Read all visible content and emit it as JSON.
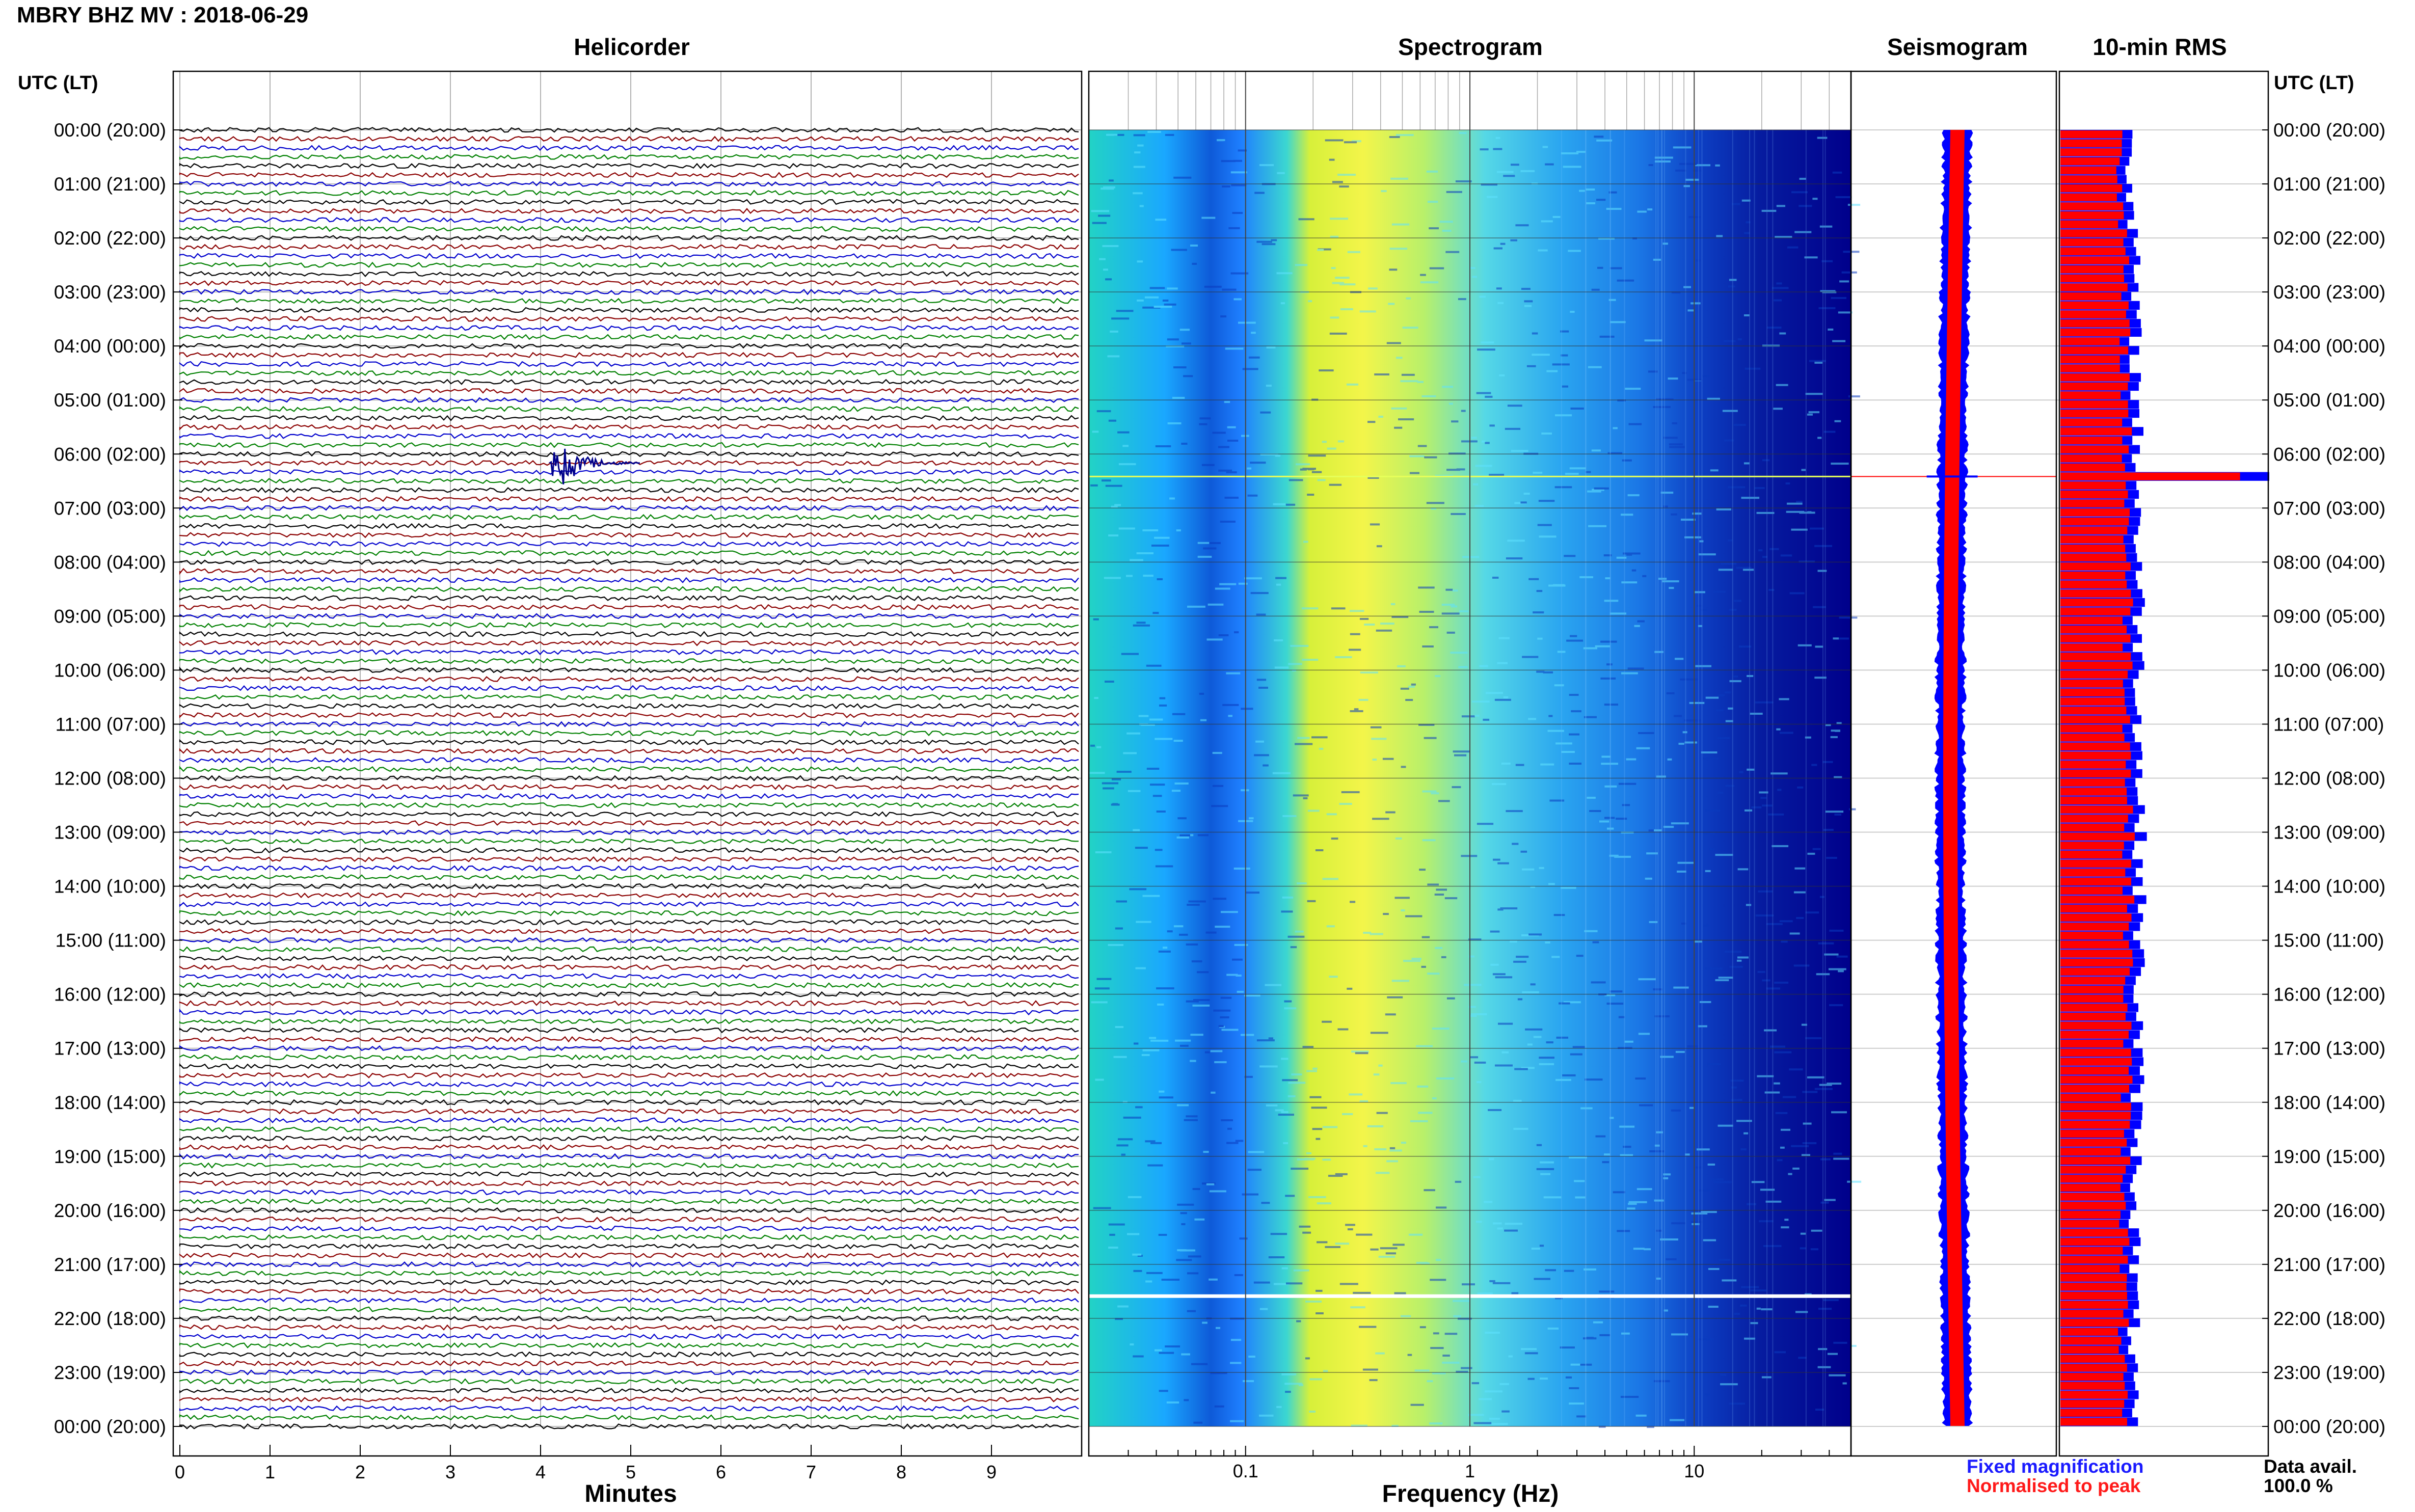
{
  "header": {
    "title": "MBRY BHZ MV : 2018-06-29"
  },
  "panels": {
    "helicorder": "Helicorder",
    "spectrogram": "Spectrogram",
    "seismogram": "Seismogram",
    "rms": "10-min RMS"
  },
  "time_axis_header_left": "UTC (LT)",
  "time_axis_header_right": "UTC (LT)",
  "legend": {
    "fixed": "Fixed magnification",
    "normalised": "Normalised to peak"
  },
  "data_availability": {
    "label": "Data avail.",
    "value": "100.0 %"
  },
  "colors": {
    "trace_cycle": [
      "#000000",
      "#8b0000",
      "#0000cd",
      "#008000"
    ],
    "event": "#00008b",
    "fixed_magnification": "#0000ff",
    "normalised_to_peak": "#ff0000",
    "spectrogram_low": "#00008b",
    "spectrogram_mid": "#1e90ff",
    "spectrogram_high": "#ffff00"
  },
  "chart_data": [
    {
      "type": "line",
      "name": "helicorder",
      "title": "Helicorder",
      "xlabel": "Minutes",
      "xlim": [
        0,
        10
      ],
      "x_ticks": [
        "0",
        "1",
        "2",
        "3",
        "4",
        "5",
        "6",
        "7",
        "8",
        "9"
      ],
      "rows_per_hour": 6,
      "hours": 24,
      "y_tick_labels": [
        "00:00 (20:00)",
        "01:00 (21:00)",
        "02:00 (22:00)",
        "03:00 (23:00)",
        "04:00 (00:00)",
        "05:00 (01:00)",
        "06:00 (02:00)",
        "07:00 (03:00)",
        "08:00 (04:00)",
        "09:00 (05:00)",
        "10:00 (06:00)",
        "11:00 (07:00)",
        "12:00 (08:00)",
        "13:00 (09:00)",
        "14:00 (10:00)",
        "15:00 (11:00)",
        "16:00 (12:00)",
        "17:00 (13:00)",
        "18:00 (14:00)",
        "19:00 (15:00)",
        "20:00 (16:00)",
        "21:00 (17:00)",
        "22:00 (18:00)",
        "23:00 (19:00)",
        "00:00 (20:00)"
      ],
      "annotations": [
        {
          "event_time_utc": "06:10",
          "start_minute": 4.1,
          "duration_minutes": 1.0
        }
      ],
      "grid": true
    },
    {
      "type": "heatmap",
      "name": "spectrogram",
      "title": "Spectrogram",
      "xlabel": "Frequency (Hz)",
      "x_scale": "log",
      "xlim": [
        0.02,
        50
      ],
      "x_ticks": [
        "0.1",
        "1",
        "10"
      ],
      "peak_band_hz": [
        0.2,
        1.0
      ],
      "notes_events": [
        {
          "time_utc": "06:25",
          "kind": "broadband line"
        },
        {
          "time_utc": "21:35",
          "kind": "data gap"
        }
      ],
      "grid": true
    },
    {
      "type": "area",
      "name": "seismogram",
      "title": "Seismogram",
      "series": [
        {
          "name": "Fixed magnification"
        },
        {
          "name": "Normalised to peak"
        }
      ],
      "peak_time_utc": "06:25",
      "grid": true
    },
    {
      "type": "bar",
      "name": "10-min RMS",
      "title": "10-min RMS",
      "series": [
        {
          "name": "Fixed magnification"
        },
        {
          "name": "Normalised to peak"
        }
      ],
      "relative_rms_typical": 0.35,
      "relative_rms_peak": 1.0,
      "peak_time_utc": "06:20",
      "grid": true
    }
  ]
}
